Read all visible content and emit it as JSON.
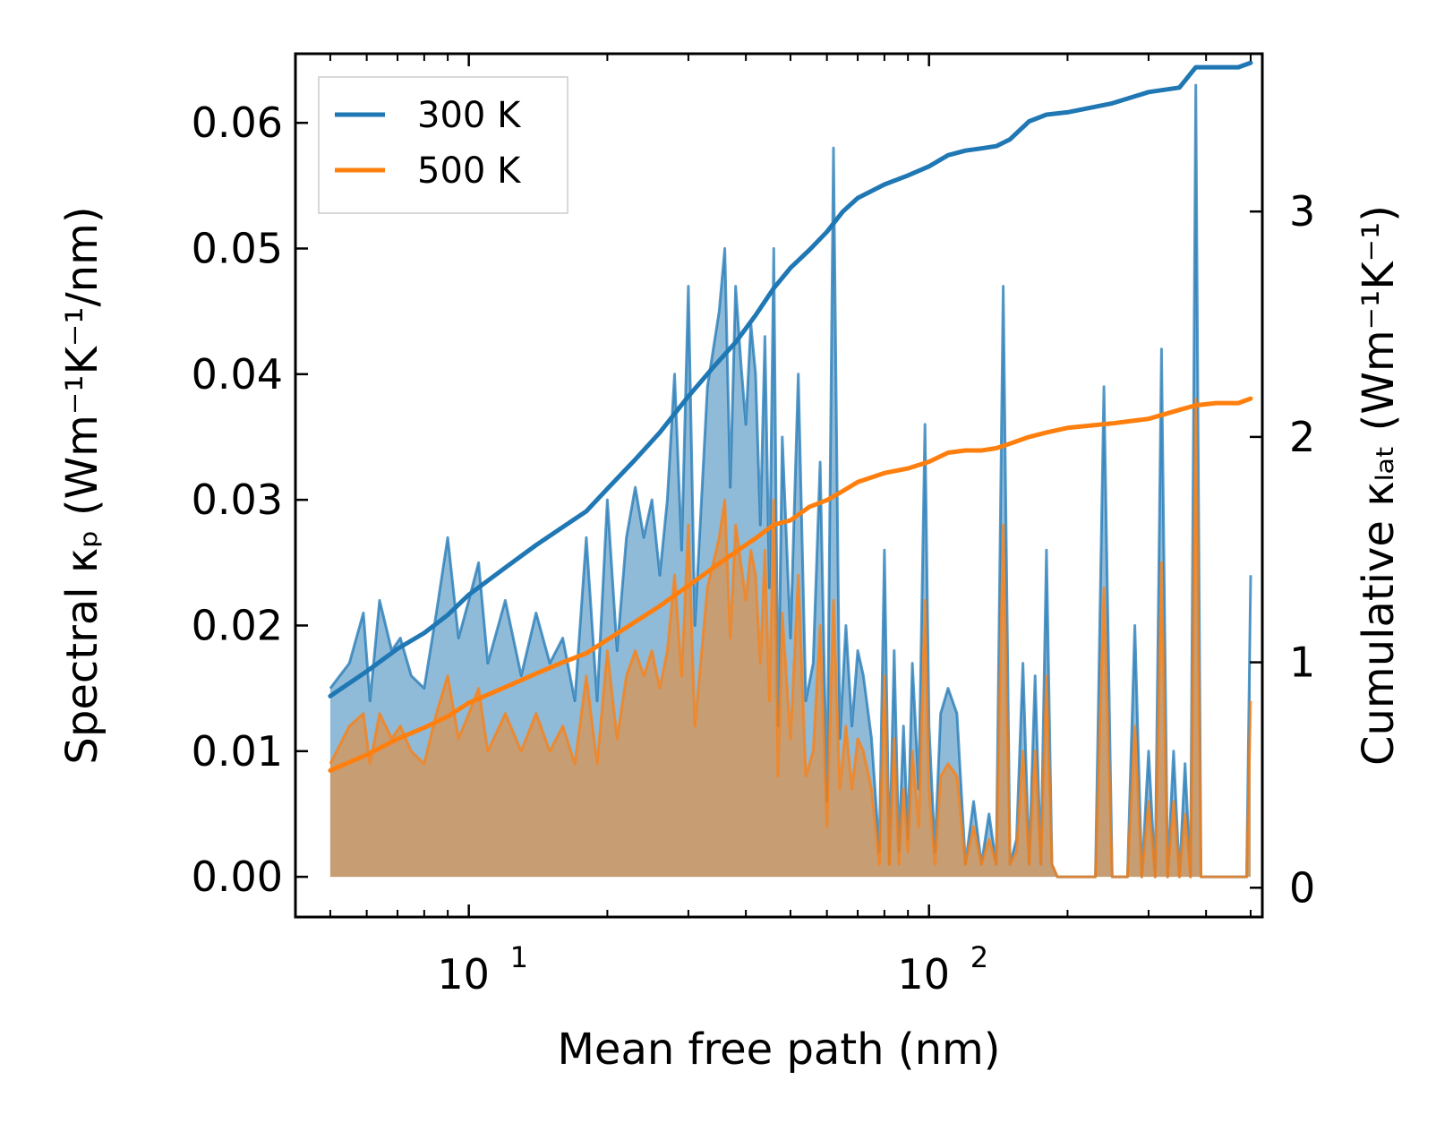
{
  "chart_data": {
    "type": "line",
    "xlabel": "Mean free path (nm)",
    "xscale": "log",
    "xlim": [
      4.2,
      530
    ],
    "x_ticks": [
      {
        "value": 10,
        "base": "10",
        "exp": "1"
      },
      {
        "value": 100,
        "base": "10",
        "exp": "2"
      }
    ],
    "left_axis": {
      "label": "Spectral κₚ (Wm⁻¹K⁻¹/nm)",
      "ylim": [
        -0.0032,
        0.0655
      ],
      "ticks": [
        "0.00",
        "0.01",
        "0.02",
        "0.03",
        "0.04",
        "0.05",
        "0.06"
      ]
    },
    "right_axis": {
      "label": "Cumulative κₗₐₜ (Wm⁻¹K⁻¹)",
      "ylim": [
        -0.13,
        3.7
      ],
      "ticks": [
        "0",
        "1",
        "2",
        "3"
      ]
    },
    "legend": {
      "position": "top-left",
      "entries": [
        "300 K",
        "500 K"
      ]
    },
    "series": [
      {
        "name": "300 K",
        "color": "#1f77b4",
        "cumulative": {
          "x": [
            5,
            6,
            7,
            8,
            9,
            10,
            12,
            14,
            16,
            18,
            20,
            23,
            26,
            30,
            34,
            38,
            42,
            46,
            50,
            55,
            60,
            65,
            70,
            80,
            90,
            100,
            110,
            120,
            130,
            140,
            150,
            165,
            180,
            200,
            250,
            300,
            350,
            380,
            420,
            470,
            500
          ],
          "values": [
            0.85,
            0.96,
            1.06,
            1.13,
            1.21,
            1.3,
            1.42,
            1.52,
            1.6,
            1.67,
            1.77,
            1.9,
            2.02,
            2.18,
            2.31,
            2.42,
            2.54,
            2.66,
            2.75,
            2.83,
            2.91,
            3.0,
            3.06,
            3.12,
            3.16,
            3.2,
            3.25,
            3.27,
            3.28,
            3.29,
            3.32,
            3.4,
            3.43,
            3.44,
            3.48,
            3.53,
            3.55,
            3.64,
            3.64,
            3.64,
            3.66
          ]
        },
        "spectral": {
          "x": [
            5,
            5.5,
            5.9,
            6.1,
            6.4,
            6.8,
            7.1,
            7.5,
            8,
            8.5,
            9,
            9.5,
            10,
            10.5,
            11,
            12,
            13,
            14,
            15,
            16,
            17,
            18,
            19,
            20,
            21,
            22,
            23,
            24,
            25,
            26,
            27,
            28,
            29,
            30,
            31,
            33,
            35,
            36,
            37,
            38,
            39,
            40,
            41,
            42,
            43,
            44,
            45,
            46,
            47,
            48,
            50,
            52,
            54,
            56,
            58,
            60,
            62,
            64,
            66,
            68,
            70,
            72,
            75,
            78,
            80,
            82,
            84,
            86,
            88,
            90,
            92,
            95,
            98,
            100,
            103,
            106,
            110,
            115,
            120,
            125,
            130,
            135,
            140,
            145,
            150,
            155,
            160,
            165,
            170,
            175,
            180,
            185,
            190,
            200,
            210,
            220,
            230,
            240,
            250,
            260,
            270,
            280,
            290,
            300,
            310,
            320,
            330,
            340,
            350,
            360,
            370,
            380,
            390,
            400,
            450,
            490,
            500
          ],
          "values": [
            0.015,
            0.017,
            0.021,
            0.014,
            0.022,
            0.018,
            0.019,
            0.016,
            0.015,
            0.021,
            0.027,
            0.019,
            0.022,
            0.025,
            0.017,
            0.022,
            0.016,
            0.021,
            0.017,
            0.019,
            0.014,
            0.027,
            0.014,
            0.03,
            0.018,
            0.027,
            0.031,
            0.027,
            0.03,
            0.024,
            0.03,
            0.04,
            0.026,
            0.047,
            0.02,
            0.039,
            0.045,
            0.05,
            0.031,
            0.047,
            0.041,
            0.036,
            0.044,
            0.04,
            0.028,
            0.043,
            0.023,
            0.05,
            0.012,
            0.035,
            0.019,
            0.04,
            0.014,
            0.017,
            0.033,
            0.006,
            0.058,
            0.011,
            0.02,
            0.012,
            0.018,
            0.016,
            0.011,
            0.002,
            0.026,
            0.001,
            0.018,
            0.002,
            0.012,
            0.003,
            0.017,
            0.007,
            0.036,
            0.012,
            0.002,
            0.013,
            0.015,
            0.013,
            0.001,
            0.006,
            0.001,
            0.005,
            0.001,
            0.047,
            0.001,
            0.003,
            0.017,
            0.001,
            0.016,
            0.001,
            0.026,
            0.001,
            0.0,
            0.0,
            0.0,
            0.0,
            0.0,
            0.039,
            0.0,
            0.0,
            0.0,
            0.02,
            0.0,
            0.01,
            0.0,
            0.042,
            0.0,
            0.01,
            0.0,
            0.009,
            0.0,
            0.063,
            0.0,
            0.0,
            0.0,
            0.0,
            0.024
          ]
        }
      },
      {
        "name": "500 K",
        "color": "#ff7f0e",
        "cumulative": {
          "x": [
            5,
            6,
            7,
            8,
            9,
            10,
            12,
            14,
            16,
            18,
            20,
            23,
            26,
            30,
            34,
            38,
            42,
            46,
            50,
            55,
            60,
            65,
            70,
            80,
            90,
            100,
            110,
            120,
            130,
            140,
            150,
            165,
            180,
            200,
            250,
            300,
            350,
            380,
            420,
            470,
            500
          ],
          "values": [
            0.52,
            0.59,
            0.66,
            0.71,
            0.76,
            0.82,
            0.89,
            0.95,
            1.0,
            1.04,
            1.1,
            1.18,
            1.25,
            1.34,
            1.42,
            1.49,
            1.55,
            1.61,
            1.63,
            1.69,
            1.72,
            1.76,
            1.8,
            1.84,
            1.86,
            1.89,
            1.93,
            1.94,
            1.94,
            1.95,
            1.97,
            2.0,
            2.02,
            2.04,
            2.06,
            2.08,
            2.12,
            2.14,
            2.15,
            2.15,
            2.17
          ]
        },
        "spectral": {
          "x": [
            5,
            5.5,
            5.9,
            6.1,
            6.4,
            6.8,
            7.1,
            7.5,
            8,
            8.5,
            9,
            9.5,
            10,
            10.5,
            11,
            12,
            13,
            14,
            15,
            16,
            17,
            18,
            19,
            20,
            21,
            22,
            23,
            24,
            25,
            26,
            27,
            28,
            29,
            30,
            31,
            33,
            35,
            36,
            37,
            38,
            39,
            40,
            41,
            42,
            43,
            44,
            45,
            46,
            47,
            48,
            50,
            52,
            54,
            56,
            58,
            60,
            62,
            64,
            66,
            68,
            70,
            72,
            75,
            78,
            80,
            82,
            84,
            86,
            88,
            90,
            92,
            95,
            98,
            100,
            103,
            106,
            110,
            115,
            120,
            125,
            130,
            135,
            140,
            145,
            150,
            155,
            160,
            165,
            170,
            175,
            180,
            185,
            190,
            200,
            210,
            220,
            230,
            240,
            250,
            260,
            270,
            280,
            290,
            300,
            310,
            320,
            330,
            340,
            350,
            360,
            370,
            380,
            390,
            400,
            450,
            490,
            500
          ],
          "values": [
            0.009,
            0.012,
            0.013,
            0.009,
            0.013,
            0.011,
            0.012,
            0.01,
            0.009,
            0.013,
            0.016,
            0.011,
            0.013,
            0.015,
            0.01,
            0.013,
            0.01,
            0.013,
            0.01,
            0.012,
            0.009,
            0.016,
            0.009,
            0.018,
            0.011,
            0.016,
            0.018,
            0.016,
            0.018,
            0.015,
            0.018,
            0.024,
            0.016,
            0.028,
            0.012,
            0.023,
            0.027,
            0.03,
            0.019,
            0.028,
            0.025,
            0.022,
            0.026,
            0.024,
            0.017,
            0.026,
            0.014,
            0.03,
            0.008,
            0.021,
            0.011,
            0.024,
            0.008,
            0.01,
            0.02,
            0.004,
            0.022,
            0.007,
            0.012,
            0.007,
            0.011,
            0.01,
            0.007,
            0.001,
            0.016,
            0.001,
            0.011,
            0.001,
            0.007,
            0.002,
            0.01,
            0.004,
            0.022,
            0.007,
            0.001,
            0.008,
            0.009,
            0.008,
            0.001,
            0.004,
            0.001,
            0.003,
            0.001,
            0.028,
            0.001,
            0.002,
            0.01,
            0.001,
            0.01,
            0.001,
            0.016,
            0.001,
            0.0,
            0.0,
            0.0,
            0.0,
            0.0,
            0.023,
            0.0,
            0.0,
            0.0,
            0.012,
            0.0,
            0.006,
            0.0,
            0.025,
            0.0,
            0.006,
            0.0,
            0.005,
            0.0,
            0.038,
            0.0,
            0.0,
            0.0,
            0.0,
            0.014
          ]
        }
      }
    ]
  }
}
